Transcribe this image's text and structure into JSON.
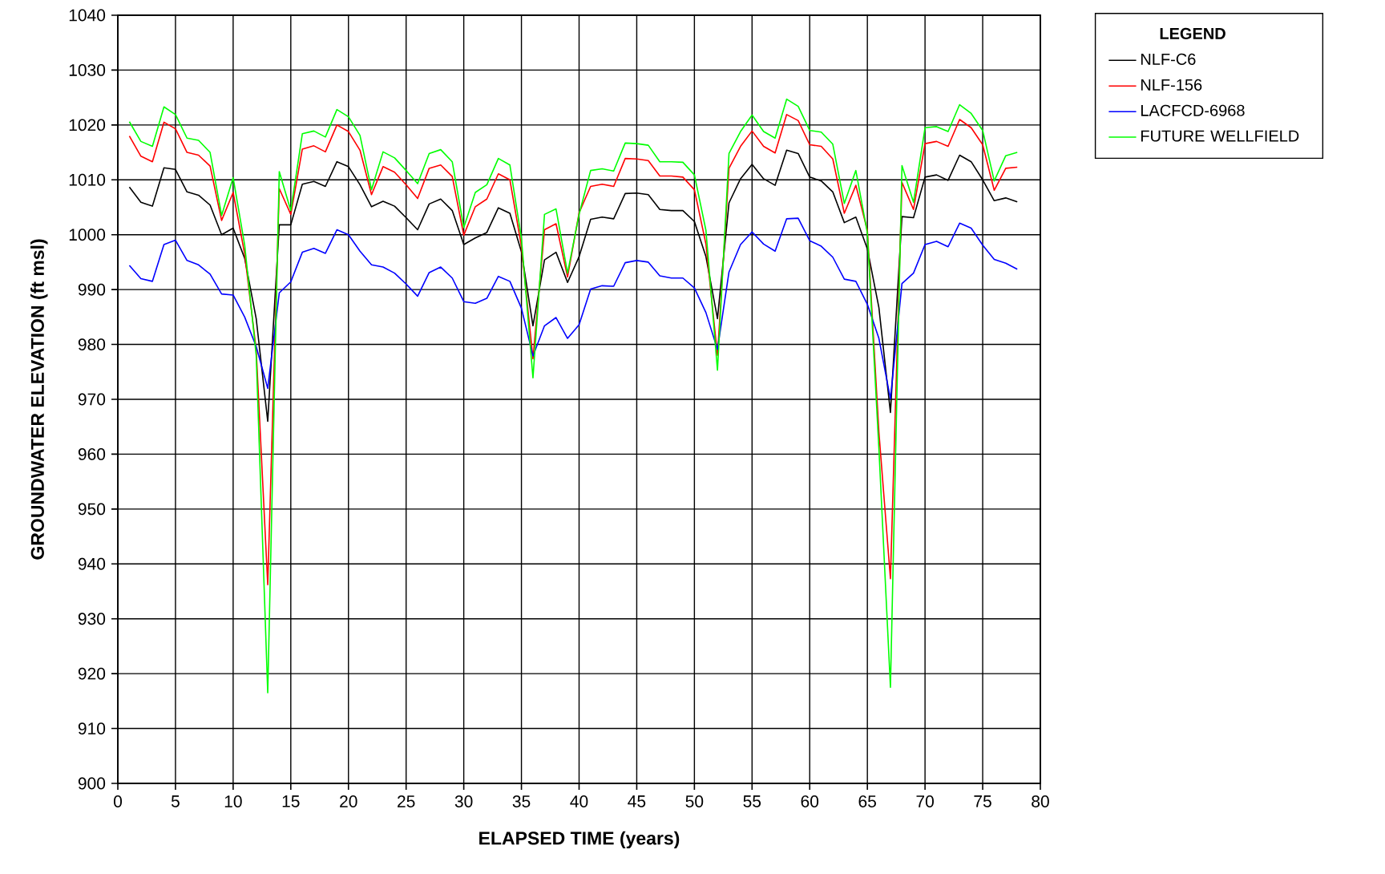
{
  "chart_data": {
    "type": "line",
    "xlabel": "ELAPSED TIME (years)",
    "ylabel": "GROUNDWATER ELEVATION (ft msl)",
    "legend_title": "LEGEND",
    "x": [
      1,
      2,
      3,
      4,
      5,
      6,
      7,
      8,
      9,
      10,
      11,
      12,
      13,
      14,
      15,
      16,
      17,
      18,
      19,
      20,
      21,
      22,
      23,
      24,
      25,
      26,
      27,
      28,
      29,
      30,
      31,
      32,
      33,
      34,
      35,
      36,
      37,
      38,
      39,
      40,
      41,
      42,
      43,
      44,
      45,
      46,
      47,
      48,
      49,
      50,
      51,
      52,
      53,
      54,
      55,
      56,
      57,
      58,
      59,
      60,
      61,
      62,
      63,
      64,
      65,
      66,
      67,
      68,
      69,
      70,
      71,
      72,
      73,
      74,
      75,
      76,
      77,
      78
    ],
    "series": [
      {
        "name": "NLF-C6",
        "color": "#000000",
        "values": [
          1008.7,
          1005.9,
          1005.2,
          1012.2,
          1011.9,
          1007.8,
          1007.2,
          1005.4,
          1000.0,
          1001.2,
          995.7,
          984.7,
          966.0,
          1001.8,
          1001.8,
          1009.2,
          1009.7,
          1008.8,
          1013.3,
          1012.4,
          1009.1,
          1005.1,
          1006.1,
          1005.2,
          1003.1,
          1000.9,
          1005.6,
          1006.5,
          1004.4,
          998.2,
          999.4,
          1000.4,
          1004.9,
          1003.9,
          996.9,
          983.4,
          995.4,
          996.8,
          991.3,
          996.0,
          1002.8,
          1003.2,
          1002.9,
          1007.5,
          1007.6,
          1007.3,
          1004.6,
          1004.4,
          1004.4,
          1002.4,
          996.0,
          984.7,
          1005.8,
          1010.2,
          1012.8,
          1010.2,
          1009.0,
          1015.4,
          1014.8,
          1010.5,
          1009.8,
          1007.8,
          1002.2,
          1003.2,
          997.4,
          986.7,
          967.6,
          1003.3,
          1003.1,
          1010.5,
          1010.9,
          1009.9,
          1014.5,
          1013.3,
          1010.0,
          1006.2,
          1006.7,
          1006.0
        ]
      },
      {
        "name": "NLF-156",
        "color": "#ff0000",
        "values": [
          1018.0,
          1014.3,
          1013.3,
          1020.5,
          1019.3,
          1015.0,
          1014.5,
          1012.5,
          1002.6,
          1007.7,
          996.5,
          979.0,
          936.2,
          1008.4,
          1003.7,
          1015.6,
          1016.2,
          1015.1,
          1020.0,
          1018.8,
          1015.4,
          1007.3,
          1012.4,
          1011.4,
          1009.1,
          1006.6,
          1012.1,
          1012.7,
          1010.6,
          999.9,
          1005.1,
          1006.5,
          1011.1,
          1010.0,
          997.9,
          977.4,
          1000.9,
          1002.0,
          992.3,
          1004.0,
          1008.8,
          1009.2,
          1008.8,
          1013.9,
          1013.8,
          1013.5,
          1010.7,
          1010.7,
          1010.5,
          1008.2,
          998.3,
          978.0,
          1012.1,
          1016.1,
          1018.9,
          1016.1,
          1014.9,
          1021.9,
          1020.8,
          1016.4,
          1016.1,
          1013.8,
          1003.9,
          1009.0,
          1000.8,
          964.0,
          937.3,
          1009.5,
          1004.6,
          1016.6,
          1017.0,
          1016.1,
          1021.0,
          1019.5,
          1016.4,
          1008.1,
          1012.1,
          1012.3
        ]
      },
      {
        "name": "LACFCD-6968",
        "color": "#0000ff",
        "values": [
          994.4,
          992.0,
          991.5,
          998.2,
          999.0,
          995.3,
          994.5,
          992.8,
          989.2,
          989.0,
          985.0,
          979.6,
          972.0,
          989.4,
          991.4,
          996.8,
          997.5,
          996.6,
          1000.9,
          1000.0,
          997.0,
          994.5,
          994.1,
          993.0,
          991.0,
          988.8,
          993.1,
          994.1,
          992.1,
          987.8,
          987.5,
          988.4,
          992.4,
          991.5,
          986.6,
          977.9,
          983.4,
          984.9,
          981.1,
          983.6,
          990.1,
          990.7,
          990.6,
          994.9,
          995.3,
          995.0,
          992.5,
          992.1,
          992.1,
          990.3,
          985.8,
          979.1,
          993.2,
          998.2,
          1000.5,
          998.3,
          997.0,
          1002.9,
          1003.0,
          998.9,
          997.9,
          995.9,
          991.9,
          991.5,
          987.3,
          981.1,
          970.1,
          991.1,
          993.0,
          998.2,
          998.8,
          997.8,
          1002.1,
          1001.2,
          998.1,
          995.5,
          994.8,
          993.7
        ]
      },
      {
        "name": "FUTURE WELLFIELD",
        "color": "#00ff00",
        "values": [
          1020.6,
          1017.0,
          1016.1,
          1023.3,
          1021.9,
          1017.6,
          1017.2,
          1015.0,
          1003.5,
          1010.4,
          998.1,
          978.0,
          916.5,
          1011.5,
          1004.4,
          1018.4,
          1018.9,
          1017.8,
          1022.8,
          1021.5,
          1018.1,
          1008.2,
          1015.1,
          1014.0,
          1011.7,
          1009.3,
          1014.8,
          1015.5,
          1013.3,
          1001.3,
          1007.7,
          1009.1,
          1013.9,
          1012.7,
          999.3,
          973.9,
          1003.7,
          1004.7,
          993.0,
          1003.7,
          1011.7,
          1012.0,
          1011.6,
          1016.7,
          1016.6,
          1016.3,
          1013.3,
          1013.3,
          1013.2,
          1010.9,
          1000.8,
          975.3,
          1014.8,
          1018.8,
          1021.8,
          1018.8,
          1017.6,
          1024.7,
          1023.4,
          1019.0,
          1018.7,
          1016.5,
          1005.7,
          1011.7,
          1000.3,
          961.0,
          917.5,
          1012.6,
          1005.9,
          1019.5,
          1019.7,
          1018.8,
          1023.7,
          1022.1,
          1019.0,
          1009.8,
          1014.4,
          1015.0
        ]
      }
    ],
    "xlim": [
      0,
      80
    ],
    "ylim": [
      900,
      1040
    ],
    "xticks": [
      0,
      5,
      10,
      15,
      20,
      25,
      30,
      35,
      40,
      45,
      50,
      55,
      60,
      65,
      70,
      75,
      80
    ],
    "yticks": [
      900,
      910,
      920,
      930,
      940,
      950,
      960,
      970,
      980,
      990,
      1000,
      1010,
      1020,
      1030,
      1040
    ],
    "grid": true,
    "legend": "top right",
    "marker": "none",
    "line_style": "solid"
  }
}
